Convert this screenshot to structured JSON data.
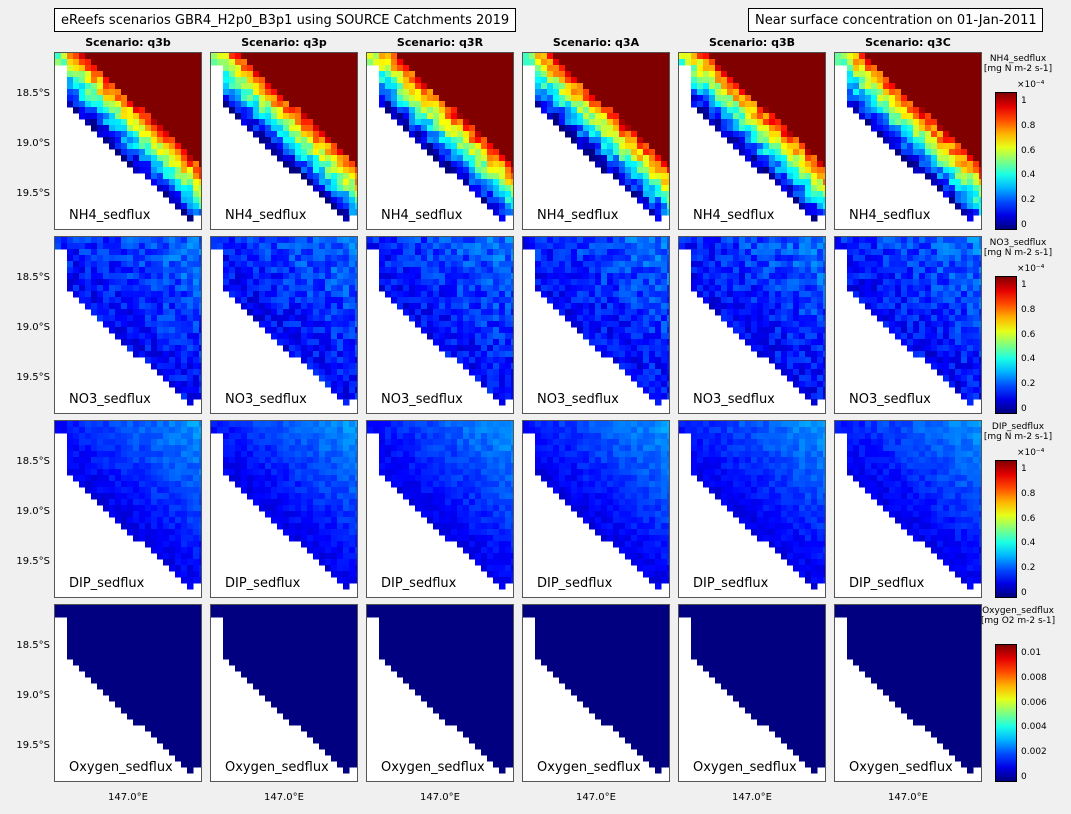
{
  "header": {
    "title_left": "eReefs scenarios GBR4_H2p0_B3p1 using SOURCE Catchments 2019",
    "title_right": "Near surface concentration on 01-Jan-2011"
  },
  "columns": [
    "Scenario: q3b",
    "Scenario: q3p",
    "Scenario: q3R",
    "Scenario: q3A",
    "Scenario: q3B",
    "Scenario: q3C"
  ],
  "y_ticks": [
    "18.5°S",
    "19.0°S",
    "19.5°S"
  ],
  "x_tick": "147.0°E",
  "rows": [
    {
      "variable": "NH4_sedflux",
      "colorbar": {
        "title_line1": "NH4_sedflux",
        "title_line2": "[mg N  m-2 s-1]",
        "exponent": "×10⁻⁴",
        "ticks": [
          "1",
          "0.8",
          "0.6",
          "0.4",
          "0.2",
          "0"
        ]
      }
    },
    {
      "variable": "NO3_sedflux",
      "colorbar": {
        "title_line1": "NO3_sedflux",
        "title_line2": "[mg N  m-2 s-1]",
        "exponent": "×10⁻⁴",
        "ticks": [
          "1",
          "0.8",
          "0.6",
          "0.4",
          "0.2",
          "0"
        ]
      }
    },
    {
      "variable": "DIP_sedflux",
      "colorbar": {
        "title_line1": "DIP_sedflux",
        "title_line2": "[mg N  m-2 s-1]",
        "exponent": "×10⁻⁴",
        "ticks": [
          "1",
          "0.8",
          "0.6",
          "0.4",
          "0.2",
          "0"
        ]
      }
    },
    {
      "variable": "Oxygen_sedflux",
      "colorbar": {
        "title_line1": "Oxygen_sedflux",
        "title_line2": "[mg O2 m-2 s-1]",
        "exponent": "",
        "ticks": [
          "0.01",
          "0.008",
          "0.006",
          "0.004",
          "0.002",
          "0"
        ]
      }
    }
  ],
  "chart_data": {
    "type": "heatmap",
    "colormap": "jet",
    "layout": "4 rows (variables) x 6 columns (scenarios)",
    "variables": [
      "NH4_sedflux",
      "NO3_sedflux",
      "DIP_sedflux",
      "Oxygen_sedflux"
    ],
    "scenarios": [
      "q3b",
      "q3p",
      "q3R",
      "q3A",
      "q3B",
      "q3C"
    ],
    "ylabel_ticks": [
      "18.5°S",
      "19.0°S",
      "19.5°S"
    ],
    "xlabel_ticks": [
      "147.0°E"
    ],
    "color_limits": [
      [
        0,
        0.00012
      ],
      [
        0,
        0.00012
      ],
      [
        0,
        0.00012
      ],
      [
        0,
        0.012
      ]
    ],
    "typical_offshore_value": [
      0.00012,
      2e-05,
      2e-05,
      0
    ],
    "typical_inshore_value": [
      2e-05,
      5e-06,
      1e-05,
      0
    ]
  }
}
